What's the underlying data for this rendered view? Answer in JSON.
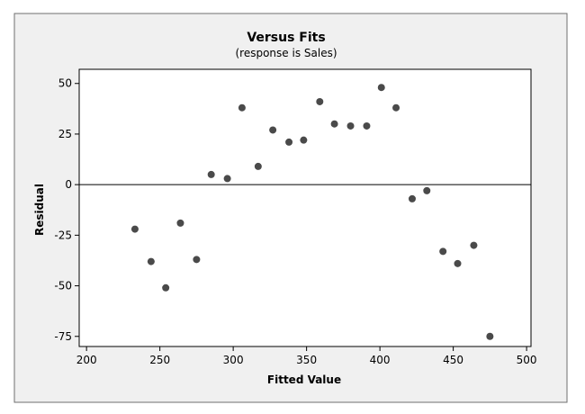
{
  "chart_data": {
    "type": "scatter",
    "title": "Versus Fits",
    "subtitle": "(response is Sales)",
    "xlabel": "Fitted Value",
    "ylabel": "Residual",
    "xlim": [
      195,
      503
    ],
    "ylim": [
      -80,
      57
    ],
    "xticks": [
      200,
      250,
      300,
      350,
      400,
      450,
      500
    ],
    "yticks": [
      50,
      25,
      0,
      -25,
      -50,
      -75
    ],
    "xtick_labels": [
      "200",
      "250",
      "300",
      "350",
      "400",
      "450",
      "500"
    ],
    "ytick_labels": [
      "50",
      "25",
      "0",
      "-25",
      "-50",
      "-75"
    ],
    "reference_line_y": 0,
    "grid": false,
    "marker_color": "#4a4a4a",
    "points": [
      {
        "x": 233,
        "y": -22
      },
      {
        "x": 244,
        "y": -38
      },
      {
        "x": 254,
        "y": -51
      },
      {
        "x": 264,
        "y": -19
      },
      {
        "x": 275,
        "y": -37
      },
      {
        "x": 285,
        "y": 5
      },
      {
        "x": 296,
        "y": 3
      },
      {
        "x": 306,
        "y": 38
      },
      {
        "x": 317,
        "y": 9
      },
      {
        "x": 327,
        "y": 27
      },
      {
        "x": 338,
        "y": 21
      },
      {
        "x": 348,
        "y": 22
      },
      {
        "x": 359,
        "y": 41
      },
      {
        "x": 369,
        "y": 30
      },
      {
        "x": 380,
        "y": 29
      },
      {
        "x": 391,
        "y": 29
      },
      {
        "x": 401,
        "y": 48
      },
      {
        "x": 411,
        "y": 38
      },
      {
        "x": 422,
        "y": -7
      },
      {
        "x": 432,
        "y": -3
      },
      {
        "x": 443,
        "y": -33
      },
      {
        "x": 453,
        "y": -39
      },
      {
        "x": 464,
        "y": -30
      },
      {
        "x": 475,
        "y": -75
      }
    ]
  }
}
